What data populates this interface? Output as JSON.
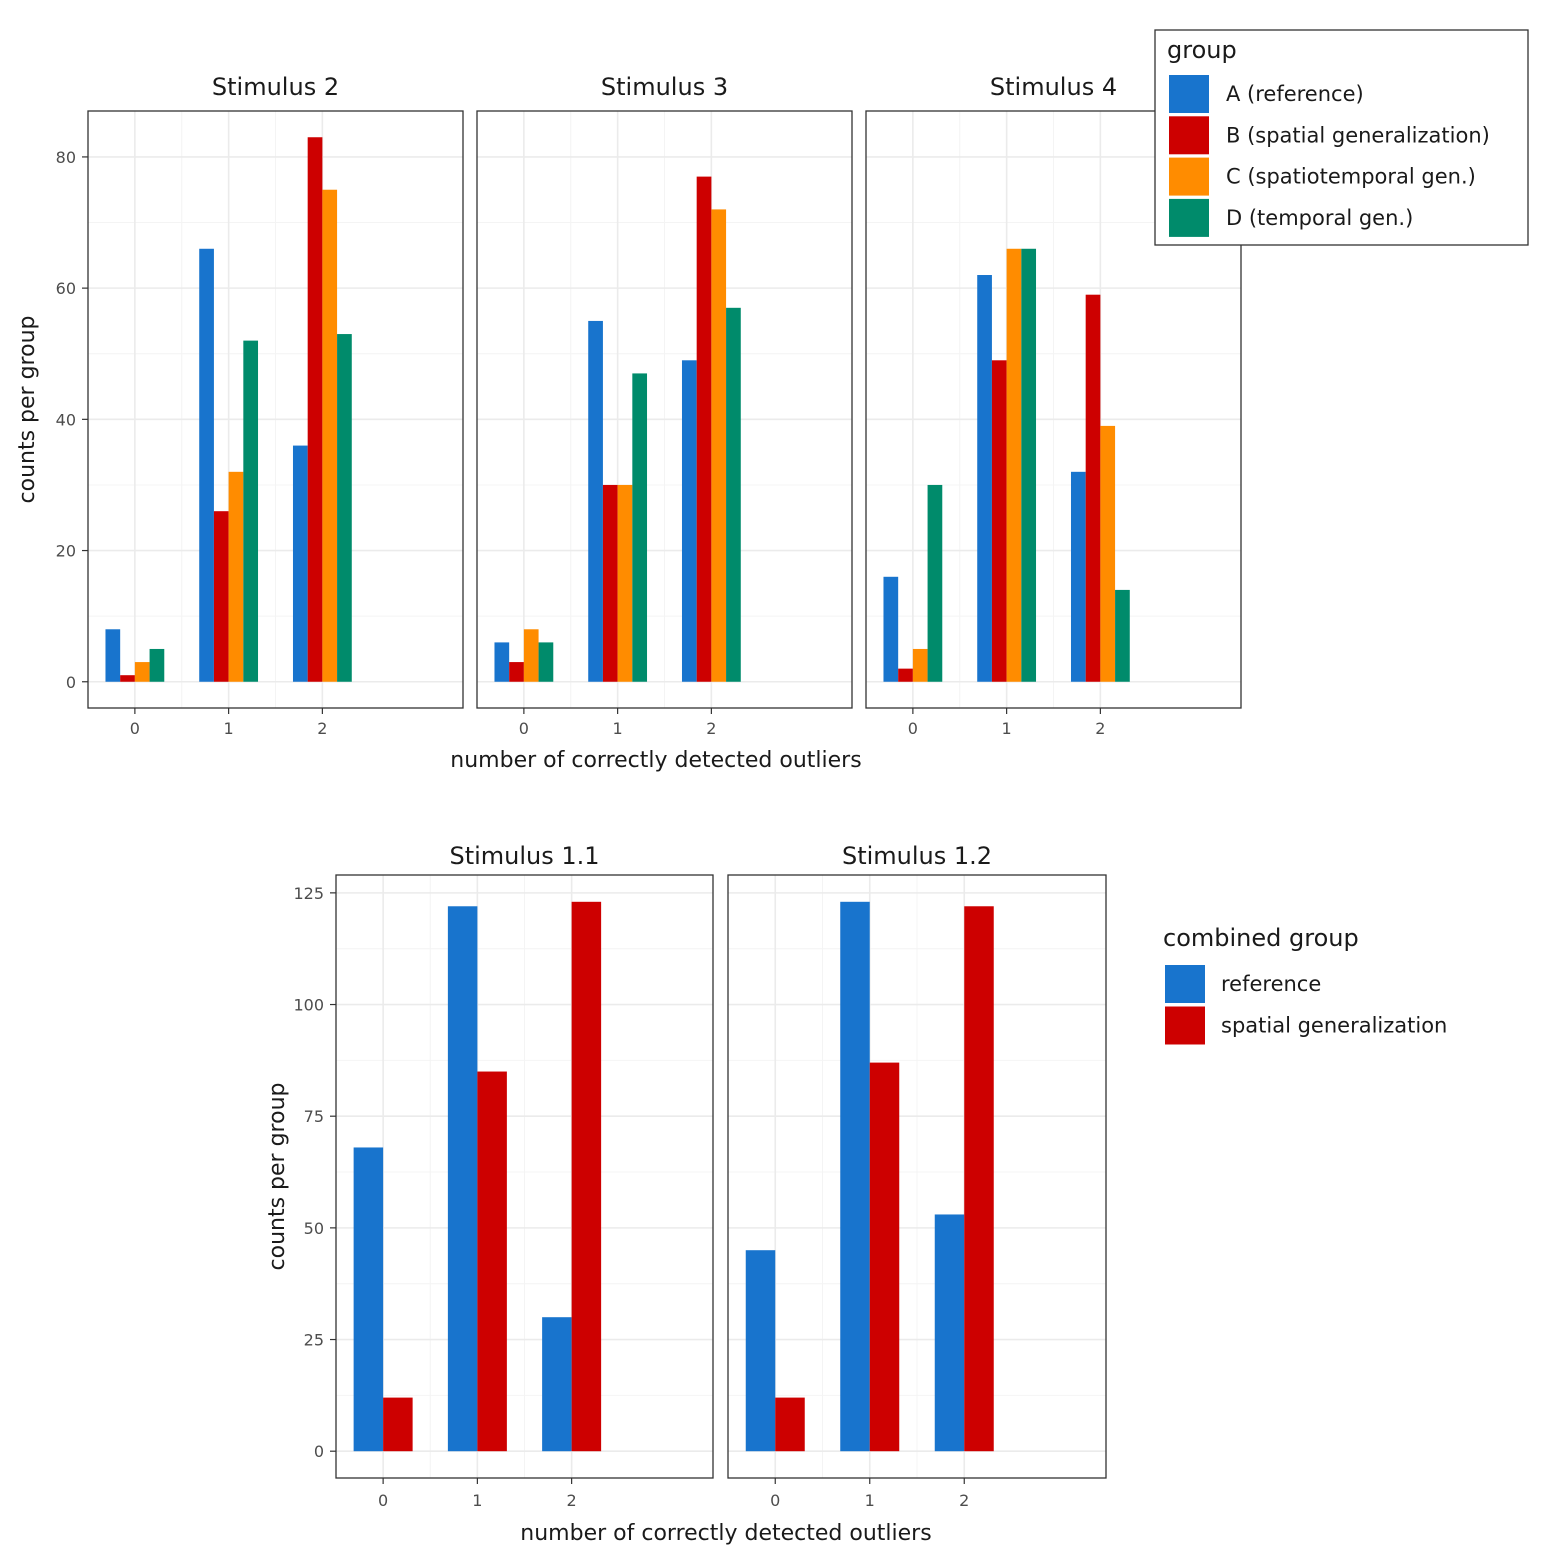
{
  "colors": {
    "A": "#1874cd",
    "B": "#cd0000",
    "C": "#ff8c00",
    "D": "#008b6b"
  },
  "chart_data": [
    {
      "type": "bar",
      "subtype": "faceted-grouped",
      "xlabel": "number of correctly detected outliers",
      "ylabel": "counts per group",
      "ylim": [
        -4,
        87
      ],
      "yticks": [
        0,
        20,
        40,
        60,
        80
      ],
      "categories": [
        "0",
        "1",
        "2"
      ],
      "legend": {
        "title": "group",
        "entries": [
          "A (reference)",
          "B (spatial generalization)",
          "C (spatiotemporal gen.)",
          "D (temporal gen.)"
        ],
        "color_keys": [
          "A",
          "B",
          "C",
          "D"
        ],
        "position": "top-right"
      },
      "panels": [
        {
          "title": "Stimulus 2",
          "series": [
            {
              "name": "A (reference)",
              "values": [
                8,
                66,
                36
              ]
            },
            {
              "name": "B (spatial generalization)",
              "values": [
                1,
                26,
                83
              ]
            },
            {
              "name": "C (spatiotemporal gen.)",
              "values": [
                3,
                32,
                75
              ]
            },
            {
              "name": "D (temporal gen.)",
              "values": [
                5,
                52,
                53
              ]
            }
          ]
        },
        {
          "title": "Stimulus 3",
          "series": [
            {
              "name": "A (reference)",
              "values": [
                6,
                55,
                49
              ]
            },
            {
              "name": "B (spatial generalization)",
              "values": [
                3,
                30,
                77
              ]
            },
            {
              "name": "C (spatiotemporal gen.)",
              "values": [
                8,
                30,
                72
              ]
            },
            {
              "name": "D (temporal gen.)",
              "values": [
                6,
                47,
                57
              ]
            }
          ]
        },
        {
          "title": "Stimulus 4",
          "series": [
            {
              "name": "A (reference)",
              "values": [
                16,
                62,
                32
              ]
            },
            {
              "name": "B (spatial generalization)",
              "values": [
                2,
                49,
                59
              ]
            },
            {
              "name": "C (spatiotemporal gen.)",
              "values": [
                5,
                66,
                39
              ]
            },
            {
              "name": "D (temporal gen.)",
              "values": [
                30,
                66,
                14
              ]
            }
          ]
        }
      ]
    },
    {
      "type": "bar",
      "subtype": "faceted-grouped",
      "xlabel": "number of correctly detected outliers",
      "ylabel": "counts per group",
      "ylim": [
        -6,
        129
      ],
      "yticks": [
        0,
        25,
        50,
        75,
        100,
        125
      ],
      "categories": [
        "0",
        "1",
        "2"
      ],
      "legend": {
        "title": "combined group",
        "entries": [
          "reference",
          "spatial generalization"
        ],
        "color_keys": [
          "A",
          "B"
        ],
        "position": "right"
      },
      "panels": [
        {
          "title": "Stimulus 1.1",
          "series": [
            {
              "name": "reference",
              "values": [
                68,
                122,
                30
              ]
            },
            {
              "name": "spatial generalization",
              "values": [
                12,
                85,
                123
              ]
            }
          ]
        },
        {
          "title": "Stimulus 1.2",
          "series": [
            {
              "name": "reference",
              "values": [
                45,
                123,
                53
              ]
            },
            {
              "name": "spatial generalization",
              "values": [
                12,
                87,
                122
              ]
            }
          ]
        }
      ]
    }
  ]
}
